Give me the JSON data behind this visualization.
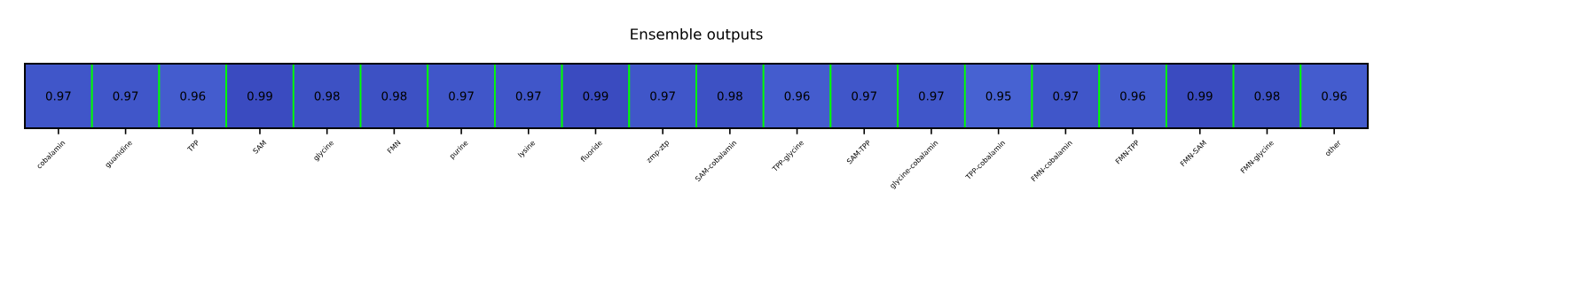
{
  "chart_data": {
    "type": "heatmap",
    "title": "Ensemble outputs",
    "categories": [
      "cobalamin",
      "guanidine",
      "TPP",
      "SAM",
      "glycine",
      "FMN",
      "purine",
      "lysine",
      "fluoride",
      "zmp-ztp",
      "SAM-cobalamin",
      "TPP-glycine",
      "SAM-TPP",
      "glycine-cobalamin",
      "TPP-cobalamin",
      "FMN-cobalamin",
      "FMN-TPP",
      "FMN-SAM",
      "FMN-glycine",
      "other"
    ],
    "y_categories": [
      null
    ],
    "cells": [
      [
        0.97,
        0.97,
        0.96,
        0.99,
        0.98,
        0.98,
        0.97,
        0.97,
        0.99,
        0.97,
        0.98,
        0.96,
        0.97,
        0.97,
        0.95,
        0.97,
        0.96,
        0.99,
        0.98,
        0.96
      ]
    ],
    "data_labels": true,
    "tick_labels": "x"
  }
}
